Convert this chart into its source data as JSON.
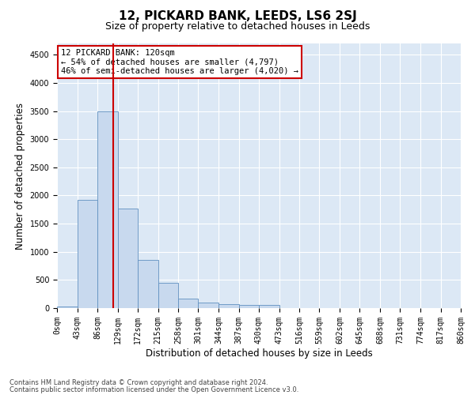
{
  "title": "12, PICKARD BANK, LEEDS, LS6 2SJ",
  "subtitle": "Size of property relative to detached houses in Leeds",
  "xlabel": "Distribution of detached houses by size in Leeds",
  "ylabel": "Number of detached properties",
  "footer_line1": "Contains HM Land Registry data © Crown copyright and database right 2024.",
  "footer_line2": "Contains public sector information licensed under the Open Government Licence v3.0.",
  "annotation_line1": "12 PICKARD BANK: 120sqm",
  "annotation_line2": "← 54% of detached houses are smaller (4,797)",
  "annotation_line3": "46% of semi-detached houses are larger (4,020) →",
  "bar_color": "#c8d9ee",
  "bar_edge_color": "#6090c0",
  "marker_color": "#cc0000",
  "background_color": "#ffffff",
  "plot_bg_color": "#dce8f5",
  "grid_color": "#ffffff",
  "bin_edges": [
    0,
    43,
    86,
    129,
    172,
    215,
    258,
    301,
    344,
    387,
    430,
    473,
    516,
    559,
    602,
    645,
    688,
    731,
    774,
    817,
    860
  ],
  "bin_labels": [
    "0sqm",
    "43sqm",
    "86sqm",
    "129sqm",
    "172sqm",
    "215sqm",
    "258sqm",
    "301sqm",
    "344sqm",
    "387sqm",
    "430sqm",
    "473sqm",
    "516sqm",
    "559sqm",
    "602sqm",
    "645sqm",
    "688sqm",
    "731sqm",
    "774sqm",
    "817sqm",
    "860sqm"
  ],
  "counts": [
    30,
    1920,
    3500,
    1770,
    860,
    450,
    165,
    100,
    75,
    60,
    50,
    0,
    0,
    0,
    0,
    0,
    0,
    0,
    0,
    0
  ],
  "ylim": [
    0,
    4700
  ],
  "yticks": [
    0,
    500,
    1000,
    1500,
    2000,
    2500,
    3000,
    3500,
    4000,
    4500
  ],
  "property_size": 120,
  "title_fontsize": 11,
  "subtitle_fontsize": 9,
  "axis_label_fontsize": 8.5,
  "tick_fontsize": 7,
  "annotation_fontsize": 7.5,
  "footer_fontsize": 6
}
